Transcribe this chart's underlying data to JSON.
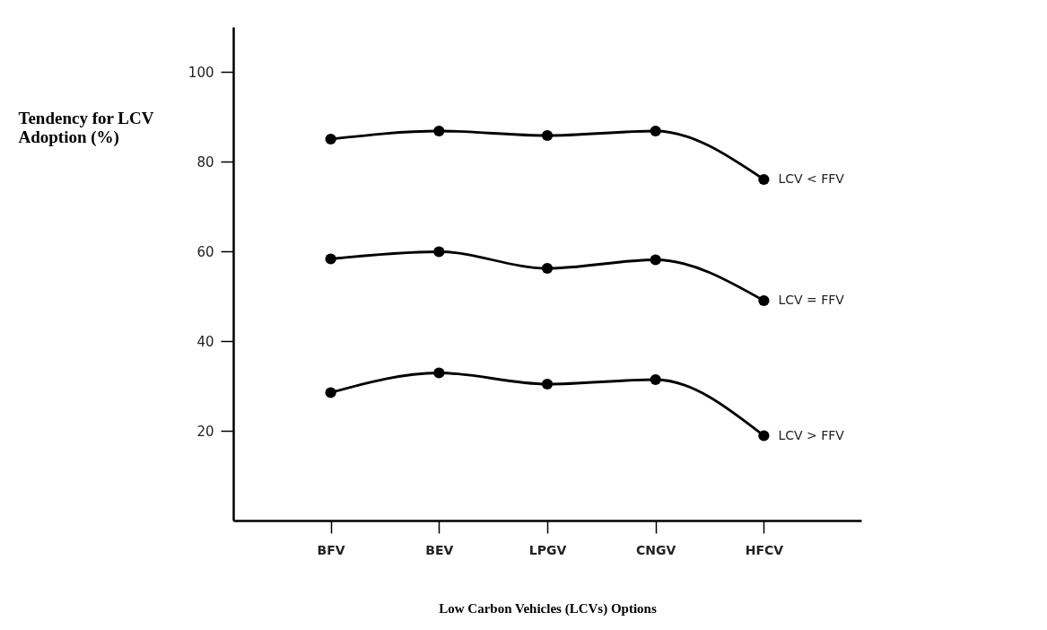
{
  "chart_data": {
    "type": "line",
    "xlabel": "Low Carbon Vehicles (LCVs) Options",
    "ylabel": "Tendency for LCV Adoption (%)",
    "categories": [
      "BFV",
      "BEV",
      "LPGV",
      "CNGV",
      "HFCV"
    ],
    "series": [
      {
        "name": "LCV < FFV",
        "color": "#000000",
        "values": [
          85.0,
          86.8,
          85.8,
          86.8,
          76.0
        ]
      },
      {
        "name": "LCV = FFV",
        "color": "#000000",
        "values": [
          58.3,
          59.9,
          56.2,
          58.1,
          49.0
        ]
      },
      {
        "name": "LCV > FFV",
        "color": "#000000",
        "values": [
          28.5,
          32.9,
          30.4,
          31.4,
          18.9
        ]
      }
    ],
    "ylim": [
      0,
      110
    ],
    "yticks": [
      20,
      40,
      60,
      80,
      100
    ],
    "grid": false,
    "legend": false,
    "marker": "circle",
    "line_style": "solid"
  }
}
